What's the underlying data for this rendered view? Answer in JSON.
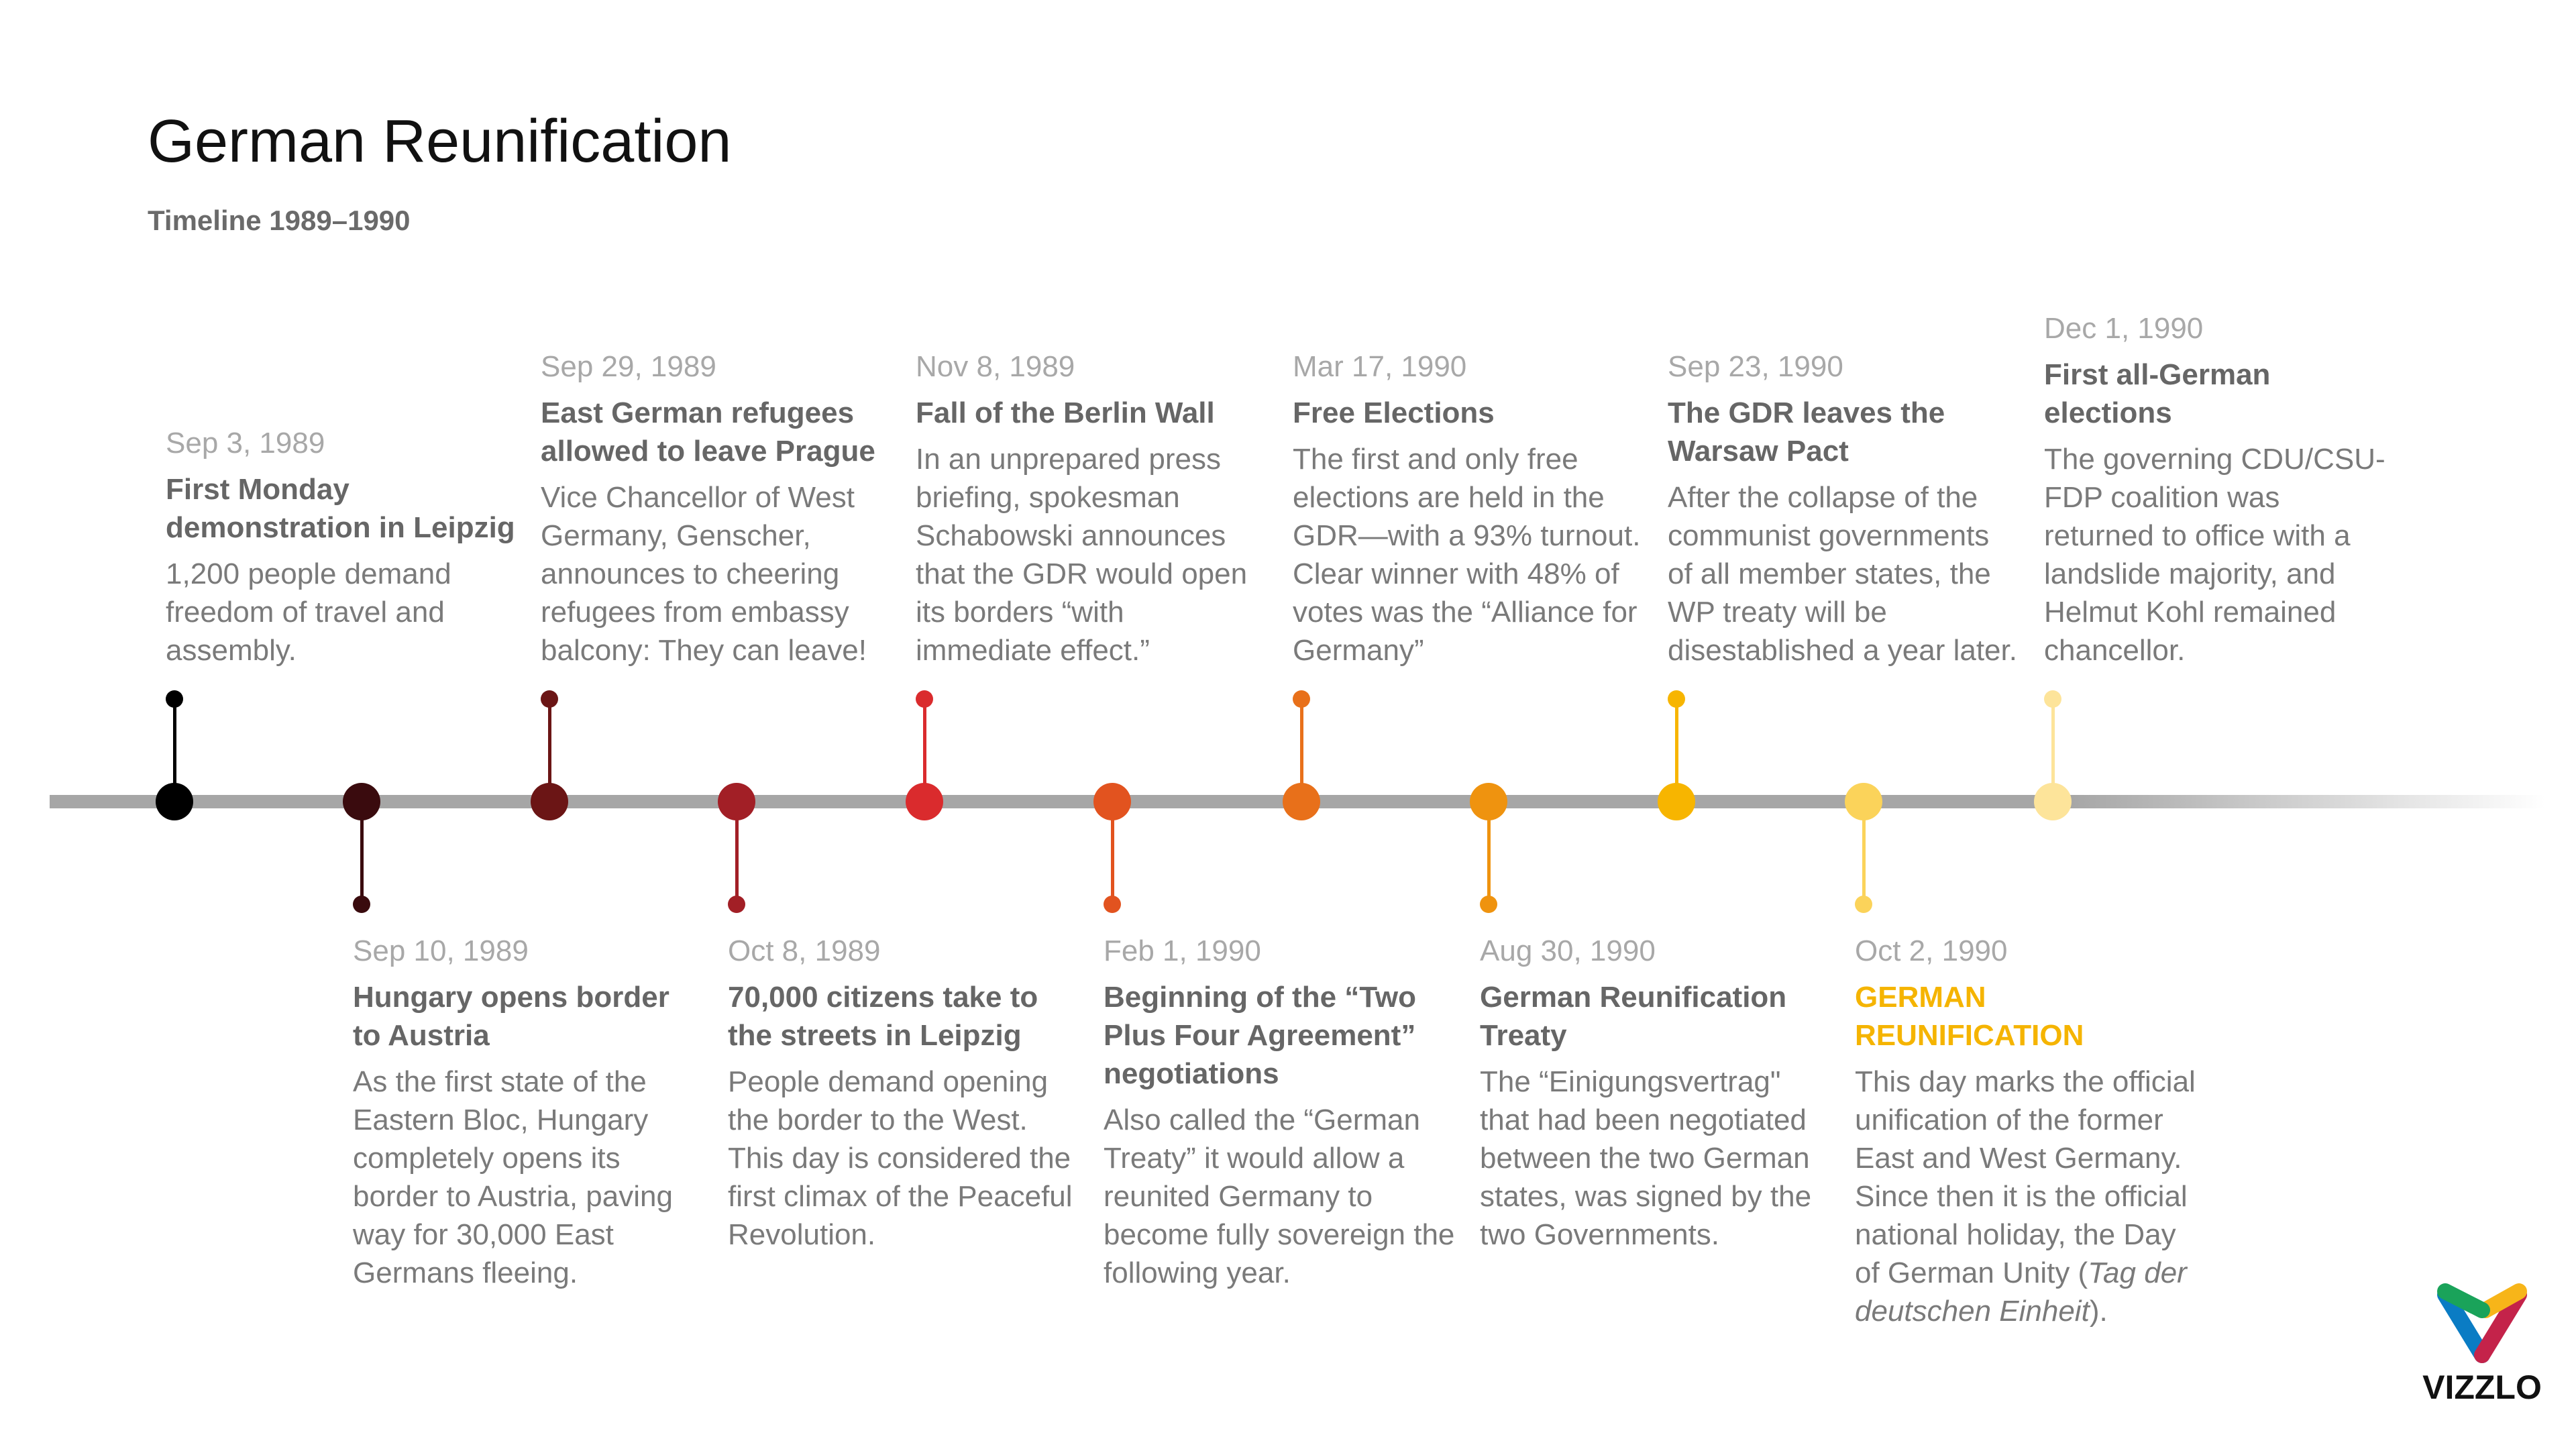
{
  "header": {
    "title": "German Reunification",
    "subtitle": "Timeline 1989–1990"
  },
  "colors": {
    "timeline": "#a6a6a6",
    "date": "#a8a8a8",
    "title": "#666666",
    "body": "#7a7a7a",
    "highlight": "#f5b400"
  },
  "events": [
    {
      "date": "Sep 3, 1989",
      "title": "First Monday demonstration in Leipzig",
      "desc": "1,200 people demand freedom of travel and assembly.",
      "color": "#000000",
      "side": "top"
    },
    {
      "date": "Sep 10, 1989",
      "title": "Hungary opens border to Austria",
      "desc": "As the first state of the Eastern Bloc, Hungary completely opens its border to Austria, paving way for 30,000 East Germans fleeing.",
      "color": "#3a0b0e",
      "side": "bottom"
    },
    {
      "date": "Sep 29, 1989",
      "title": "East German refugees allowed to leave Prague",
      "desc": "Vice Chancellor of West Germany, Genscher, announces to cheering refugees from embassy balcony: They can leave!",
      "color": "#6b1515",
      "side": "top"
    },
    {
      "date": "Oct 8, 1989",
      "title": "70,000 citizens take to the streets in Leipzig",
      "desc": "People demand opening the border to the West. This day is considered the first climax of the Peaceful Revolution.",
      "color": "#a21f26",
      "side": "bottom"
    },
    {
      "date": "Nov 8, 1989",
      "title": "Fall of the Berlin Wall",
      "desc": "In an unprepared press briefing, spokesman Schabowski announces that the GDR would open its borders “with immediate effect.”",
      "color": "#da2b2d",
      "side": "top"
    },
    {
      "date": "Feb 1, 1990",
      "title": "Beginning of the “Two Plus Four Agreement” negotiations",
      "desc": "Also called the “German Treaty” it would allow a reunited Germany to become fully sovereign the following year.",
      "color": "#e2531f",
      "side": "bottom"
    },
    {
      "date": "Mar 17, 1990",
      "title": "Free Elections",
      "desc": "The first and only free elections are held in the GDR—with a 93% turnout. Clear winner with 48% of votes was the “Alliance for Germany”",
      "color": "#e8701a",
      "side": "top"
    },
    {
      "date": "Aug 30, 1990",
      "title": "German Reunification Treaty",
      "desc": "The “Einigungsvertrag\" that had been negotiated between the two German states, was signed by the two Governments.",
      "color": "#ef930f",
      "side": "bottom"
    },
    {
      "date": "Sep 23, 1990",
      "title": "The GDR leaves the Warsaw Pact",
      "desc": "After the collapse of the communist governments of all member states, the WP treaty will be disestablished a year later.",
      "color": "#f7b500",
      "side": "top"
    },
    {
      "date": "Oct 2, 1990",
      "title": "GERMAN REUNIFICATION",
      "desc": "This day marks the official unification of the former East and West Germany. Since then it is the official national holiday, the Day of German Unity (",
      "desc_italic": "Tag der deutschen Einheit",
      "desc_end": ").",
      "color": "#fbd35a",
      "side": "bottom",
      "highlight": true
    },
    {
      "date": "Dec 1, 1990",
      "title": "First all-German elections",
      "desc": "The governing CDU/CSU-FDP coalition was returned to office with a landslide majority, and Helmut Kohl remained chancellor.",
      "color": "#fde49a",
      "side": "top"
    }
  ],
  "logo": {
    "text": "VIZZLO",
    "colors": [
      "#1aa35a",
      "#f7b519",
      "#0a7cc4",
      "#c4234a"
    ]
  }
}
